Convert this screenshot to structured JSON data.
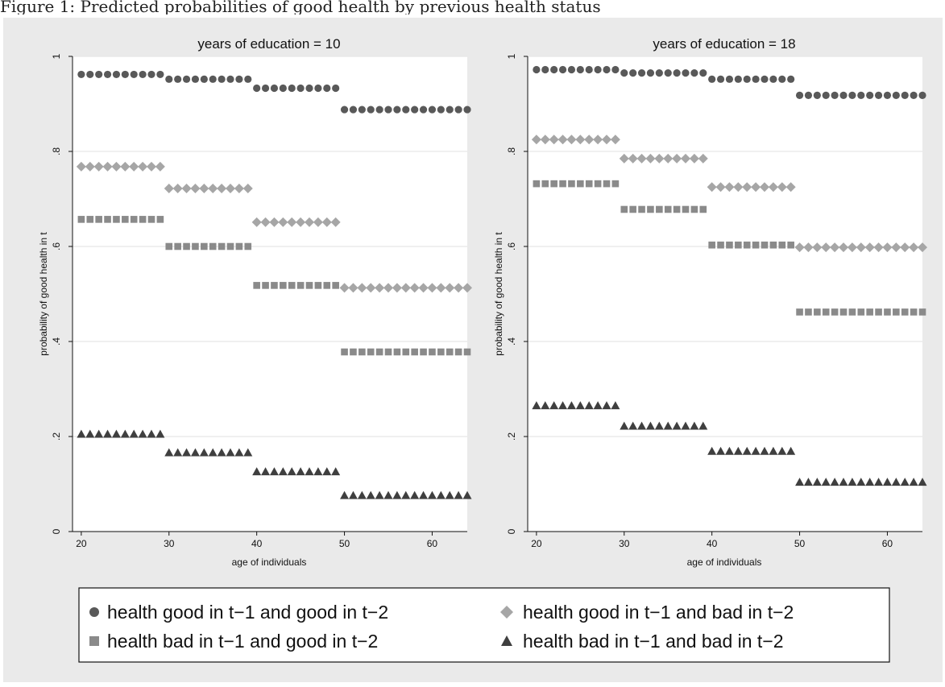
{
  "caption": "Figure 1: Predicted probabilities of good health by previous health status",
  "colors": {
    "background": "#eaeaea",
    "plot_area": "#ffffff",
    "gridline": "#e6e6e6",
    "series_gg": "#595959",
    "series_gb": "#a6a6a6",
    "series_bg": "#8a8a8a",
    "series_bb": "#3f3f3f"
  },
  "legend": {
    "items": [
      {
        "label": "health good in t−1 and good in t−2",
        "marker": "circle-icon"
      },
      {
        "label": "health good in t−1 and bad in t−2",
        "marker": "diamond-icon"
      },
      {
        "label": "health bad in t−1 and good in t−2",
        "marker": "square-icon"
      },
      {
        "label": "health bad in t−1 and bad in t−2",
        "marker": "triangle-icon"
      }
    ]
  },
  "chart_data": [
    {
      "type": "scatter",
      "title": "years of education = 10",
      "xlabel": "age of individuals",
      "ylabel": "probability of good health in t",
      "xlim": [
        19,
        64
      ],
      "ylim": [
        0,
        1
      ],
      "xticks": [
        20,
        30,
        40,
        50,
        60
      ],
      "yticks": [
        0,
        0.2,
        0.4,
        0.6,
        0.8,
        1
      ],
      "ytick_labels": [
        "0",
        ".2",
        ".4",
        ".6",
        ".8",
        "1"
      ],
      "grid": true,
      "series": [
        {
          "marker": "circle",
          "segments": [
            {
              "x": [
                20,
                29
              ],
              "y": 0.962
            },
            {
              "x": [
                30,
                39
              ],
              "y": 0.952
            },
            {
              "x": [
                40,
                49
              ],
              "y": 0.933
            },
            {
              "x": [
                50,
                64
              ],
              "y": 0.888
            }
          ]
        },
        {
          "marker": "diamond",
          "segments": [
            {
              "x": [
                20,
                29
              ],
              "y": 0.768
            },
            {
              "x": [
                30,
                39
              ],
              "y": 0.722
            },
            {
              "x": [
                40,
                49
              ],
              "y": 0.651
            },
            {
              "x": [
                50,
                64
              ],
              "y": 0.513
            }
          ]
        },
        {
          "marker": "square",
          "segments": [
            {
              "x": [
                20,
                29
              ],
              "y": 0.657
            },
            {
              "x": [
                30,
                39
              ],
              "y": 0.6
            },
            {
              "x": [
                40,
                49
              ],
              "y": 0.518
            },
            {
              "x": [
                50,
                64
              ],
              "y": 0.378
            }
          ]
        },
        {
          "marker": "triangle",
          "segments": [
            {
              "x": [
                20,
                29
              ],
              "y": 0.205
            },
            {
              "x": [
                30,
                39
              ],
              "y": 0.166
            },
            {
              "x": [
                40,
                49
              ],
              "y": 0.126
            },
            {
              "x": [
                50,
                64
              ],
              "y": 0.076
            }
          ]
        }
      ]
    },
    {
      "type": "scatter",
      "title": "years of education = 18",
      "xlabel": "age of individuals",
      "ylabel": "probability of good health in t",
      "xlim": [
        19,
        64
      ],
      "ylim": [
        0,
        1
      ],
      "xticks": [
        20,
        30,
        40,
        50,
        60
      ],
      "yticks": [
        0,
        0.2,
        0.4,
        0.6,
        0.8,
        1
      ],
      "ytick_labels": [
        "0",
        ".2",
        ".4",
        ".6",
        ".8",
        "1"
      ],
      "grid": true,
      "series": [
        {
          "marker": "circle",
          "segments": [
            {
              "x": [
                20,
                29
              ],
              "y": 0.972
            },
            {
              "x": [
                30,
                39
              ],
              "y": 0.965
            },
            {
              "x": [
                40,
                49
              ],
              "y": 0.952
            },
            {
              "x": [
                50,
                64
              ],
              "y": 0.918
            }
          ]
        },
        {
          "marker": "diamond",
          "segments": [
            {
              "x": [
                20,
                29
              ],
              "y": 0.825
            },
            {
              "x": [
                30,
                39
              ],
              "y": 0.785
            },
            {
              "x": [
                40,
                49
              ],
              "y": 0.725
            },
            {
              "x": [
                50,
                64
              ],
              "y": 0.598
            }
          ]
        },
        {
          "marker": "square",
          "segments": [
            {
              "x": [
                20,
                29
              ],
              "y": 0.732
            },
            {
              "x": [
                30,
                39
              ],
              "y": 0.678
            },
            {
              "x": [
                40,
                49
              ],
              "y": 0.603
            },
            {
              "x": [
                50,
                64
              ],
              "y": 0.462
            }
          ]
        },
        {
          "marker": "triangle",
          "segments": [
            {
              "x": [
                20,
                29
              ],
              "y": 0.265
            },
            {
              "x": [
                30,
                39
              ],
              "y": 0.222
            },
            {
              "x": [
                40,
                49
              ],
              "y": 0.169
            },
            {
              "x": [
                50,
                64
              ],
              "y": 0.104
            }
          ]
        }
      ]
    }
  ]
}
